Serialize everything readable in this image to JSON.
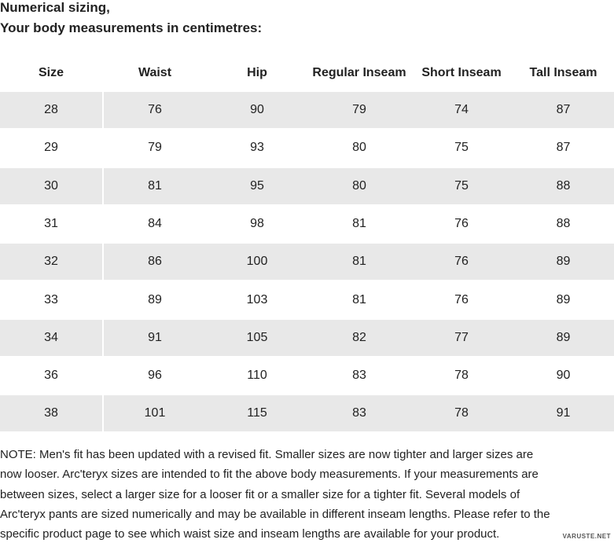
{
  "heading": [
    "Numerical sizing,",
    "Your body measurements in centimetres:"
  ],
  "table": {
    "columns": [
      "Size",
      "Waist",
      "Hip",
      "Regular Inseam",
      "Short Inseam",
      "Tall Inseam"
    ],
    "rows": [
      [
        28,
        76,
        90,
        79,
        74,
        87
      ],
      [
        29,
        79,
        93,
        80,
        75,
        87
      ],
      [
        30,
        81,
        95,
        80,
        75,
        88
      ],
      [
        31,
        84,
        98,
        81,
        76,
        88
      ],
      [
        32,
        86,
        100,
        81,
        76,
        89
      ],
      [
        33,
        89,
        103,
        81,
        76,
        89
      ],
      [
        34,
        91,
        105,
        82,
        77,
        89
      ],
      [
        36,
        96,
        110,
        83,
        78,
        90
      ],
      [
        38,
        101,
        115,
        83,
        78,
        91
      ]
    ]
  },
  "note": [
    "NOTE: Men's fit has been updated with a revised fit. Smaller sizes are now tighter and larger sizes are",
    "now looser. Arc'teryx sizes are intended to fit the above body measurements. If your measurements are",
    "between sizes, select a larger size for a looser fit or a smaller size for a tighter fit. Several models of",
    "Arc'teryx pants are sized numerically and may be available in different inseam lengths. Please refer to the",
    "specific product page to see which waist size and inseam lengths are available for your product."
  ],
  "watermark": "VARUSTE.NET"
}
